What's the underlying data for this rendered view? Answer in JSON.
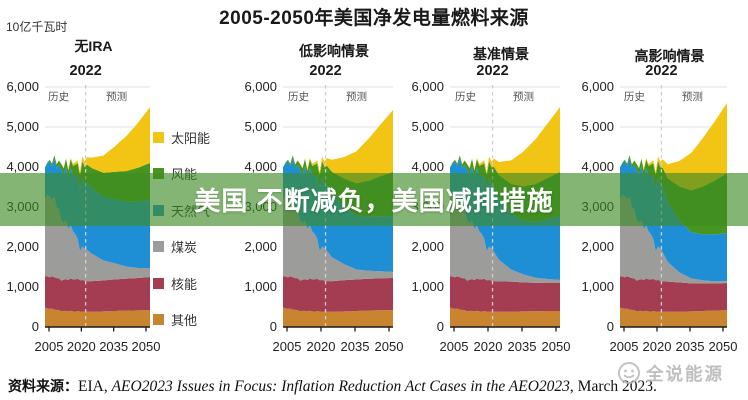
{
  "title": "2005-2050年美国净发电量燃料来源",
  "y_axis_unit": "10亿千瓦时",
  "banner": {
    "text": "美国 不断减负，美国减排措施",
    "color": "#3e8a23"
  },
  "legend": {
    "items": [
      {
        "label": "太阳能",
        "color": "#F2C413"
      },
      {
        "label": "风能",
        "color": "#47951F"
      },
      {
        "label": "天然气",
        "color": "#1E8FD5"
      },
      {
        "label": "煤炭",
        "color": "#9C9C9A"
      },
      {
        "label": "核能",
        "color": "#A43C52"
      },
      {
        "label": "其他",
        "color": "#C8842F"
      }
    ]
  },
  "axis_labels": {
    "x_ticks": [
      "2005",
      "2020",
      "2035",
      "2050"
    ],
    "y_ticks": [
      "0",
      "1,000",
      "2,000",
      "3,000",
      "4,000",
      "5,000",
      "6,000"
    ],
    "divider_year": "2022",
    "history": "历史",
    "forecast": "预测"
  },
  "source": {
    "prefix": "资料来源：",
    "agency": "EIA, ",
    "report_title": "AEO2023 Issues in Focus: Inflation Reduction Act Cases in the AEO2023",
    "suffix": ", March 2023."
  },
  "watermark": {
    "text": "全说能源"
  },
  "chart_data": [
    {
      "type": "area",
      "stacked": true,
      "title": "无IRA",
      "x": [
        2005,
        2008,
        2010,
        2012,
        2015,
        2018,
        2020,
        2022,
        2025,
        2030,
        2035,
        2040,
        2045,
        2050
      ],
      "ylim": [
        0,
        6000
      ],
      "divider_x": 2022,
      "series": [
        {
          "name": "其他",
          "color": "#C8842F",
          "values": [
            480,
            450,
            430,
            400,
            400,
            390,
            395,
            380,
            380,
            390,
            400,
            410,
            415,
            425
          ]
        },
        {
          "name": "核能",
          "color": "#A43C52",
          "values": [
            780,
            805,
            805,
            770,
            795,
            805,
            790,
            770,
            765,
            775,
            790,
            800,
            810,
            825
          ]
        },
        {
          "name": "煤炭",
          "color": "#9C9C9A",
          "values": [
            2015,
            1985,
            1850,
            1510,
            1350,
            1150,
            770,
            830,
            690,
            500,
            400,
            300,
            250,
            225
          ]
        },
        {
          "name": "天然气",
          "color": "#1E8FD5",
          "values": [
            760,
            880,
            990,
            1230,
            1330,
            1470,
            1620,
            1690,
            1640,
            1600,
            1600,
            1620,
            1660,
            1700
          ]
        },
        {
          "name": "风能",
          "color": "#47951F",
          "values": [
            18,
            55,
            95,
            140,
            190,
            270,
            340,
            435,
            500,
            590,
            690,
            770,
            850,
            925
          ]
        },
        {
          "name": "太阳能",
          "color": "#F2C413",
          "values": [
            0,
            2,
            5,
            10,
            25,
            65,
            90,
            145,
            260,
            430,
            640,
            880,
            1130,
            1400
          ]
        }
      ]
    },
    {
      "type": "area",
      "stacked": true,
      "title": "低影响情景",
      "x": [
        2005,
        2008,
        2010,
        2012,
        2015,
        2018,
        2020,
        2022,
        2025,
        2030,
        2035,
        2040,
        2045,
        2050
      ],
      "ylim": [
        0,
        6000
      ],
      "divider_x": 2022,
      "series": [
        {
          "name": "其他",
          "color": "#C8842F",
          "values": [
            480,
            450,
            430,
            400,
            400,
            390,
            395,
            380,
            380,
            390,
            400,
            410,
            420,
            425
          ]
        },
        {
          "name": "核能",
          "color": "#A43C52",
          "values": [
            780,
            805,
            805,
            770,
            795,
            805,
            790,
            770,
            765,
            780,
            790,
            795,
            800,
            800
          ]
        },
        {
          "name": "煤炭",
          "color": "#9C9C9A",
          "values": [
            2015,
            1985,
            1850,
            1510,
            1350,
            1150,
            770,
            830,
            600,
            400,
            250,
            200,
            175,
            150
          ]
        },
        {
          "name": "天然气",
          "color": "#1E8FD5",
          "values": [
            760,
            880,
            990,
            1230,
            1330,
            1470,
            1620,
            1690,
            1590,
            1450,
            1350,
            1350,
            1375,
            1400
          ]
        },
        {
          "name": "风能",
          "color": "#47951F",
          "values": [
            18,
            55,
            95,
            140,
            190,
            270,
            340,
            435,
            545,
            690,
            800,
            900,
            1000,
            1100
          ]
        },
        {
          "name": "太阳能",
          "color": "#F2C413",
          "values": [
            0,
            2,
            5,
            10,
            25,
            65,
            90,
            145,
            300,
            540,
            800,
            1050,
            1300,
            1550
          ]
        }
      ]
    },
    {
      "type": "area",
      "stacked": true,
      "title": "基准情景",
      "x": [
        2005,
        2008,
        2010,
        2012,
        2015,
        2018,
        2020,
        2022,
        2025,
        2030,
        2035,
        2040,
        2045,
        2050
      ],
      "ylim": [
        0,
        6000
      ],
      "divider_x": 2022,
      "series": [
        {
          "name": "其他",
          "color": "#C8842F",
          "values": [
            480,
            450,
            430,
            400,
            400,
            390,
            395,
            380,
            380,
            385,
            390,
            395,
            400,
            400
          ]
        },
        {
          "name": "核能",
          "color": "#A43C52",
          "values": [
            780,
            805,
            805,
            770,
            795,
            805,
            790,
            770,
            760,
            750,
            725,
            710,
            700,
            700
          ]
        },
        {
          "name": "煤炭",
          "color": "#9C9C9A",
          "values": [
            2015,
            1985,
            1850,
            1510,
            1350,
            1150,
            770,
            830,
            545,
            300,
            200,
            125,
            100,
            75
          ]
        },
        {
          "name": "天然气",
          "color": "#1E8FD5",
          "values": [
            760,
            880,
            990,
            1230,
            1330,
            1470,
            1620,
            1690,
            1545,
            1400,
            1350,
            1400,
            1500,
            1600
          ]
        },
        {
          "name": "风能",
          "color": "#47951F",
          "values": [
            18,
            55,
            95,
            140,
            190,
            270,
            340,
            435,
            570,
            740,
            850,
            945,
            1025,
            1100
          ]
        },
        {
          "name": "太阳能",
          "color": "#F2C413",
          "values": [
            0,
            2,
            5,
            10,
            25,
            65,
            90,
            145,
            325,
            590,
            870,
            1120,
            1370,
            1625
          ]
        }
      ]
    },
    {
      "type": "area",
      "stacked": true,
      "title": "高影响情景",
      "x": [
        2005,
        2008,
        2010,
        2012,
        2015,
        2018,
        2020,
        2022,
        2025,
        2030,
        2035,
        2040,
        2045,
        2050
      ],
      "ylim": [
        0,
        6000
      ],
      "divider_x": 2022,
      "series": [
        {
          "name": "其他",
          "color": "#C8842F",
          "values": [
            480,
            450,
            430,
            400,
            400,
            390,
            395,
            380,
            380,
            385,
            390,
            400,
            410,
            425
          ]
        },
        {
          "name": "核能",
          "color": "#A43C52",
          "values": [
            780,
            805,
            805,
            770,
            795,
            805,
            790,
            770,
            755,
            730,
            700,
            690,
            680,
            675
          ]
        },
        {
          "name": "煤炭",
          "color": "#9C9C9A",
          "values": [
            2015,
            1985,
            1850,
            1510,
            1350,
            1150,
            770,
            830,
            495,
            250,
            125,
            75,
            50,
            50
          ]
        },
        {
          "name": "天然气",
          "color": "#1E8FD5",
          "values": [
            760,
            880,
            990,
            1230,
            1330,
            1470,
            1620,
            1690,
            1490,
            1300,
            1150,
            1150,
            1175,
            1200
          ]
        },
        {
          "name": "风能",
          "color": "#47951F",
          "values": [
            18,
            55,
            95,
            140,
            190,
            270,
            340,
            435,
            600,
            845,
            1050,
            1200,
            1350,
            1500
          ]
        },
        {
          "name": "太阳能",
          "color": "#F2C413",
          "values": [
            0,
            2,
            5,
            10,
            25,
            65,
            90,
            145,
            350,
            640,
            940,
            1220,
            1490,
            1750
          ]
        }
      ]
    }
  ]
}
